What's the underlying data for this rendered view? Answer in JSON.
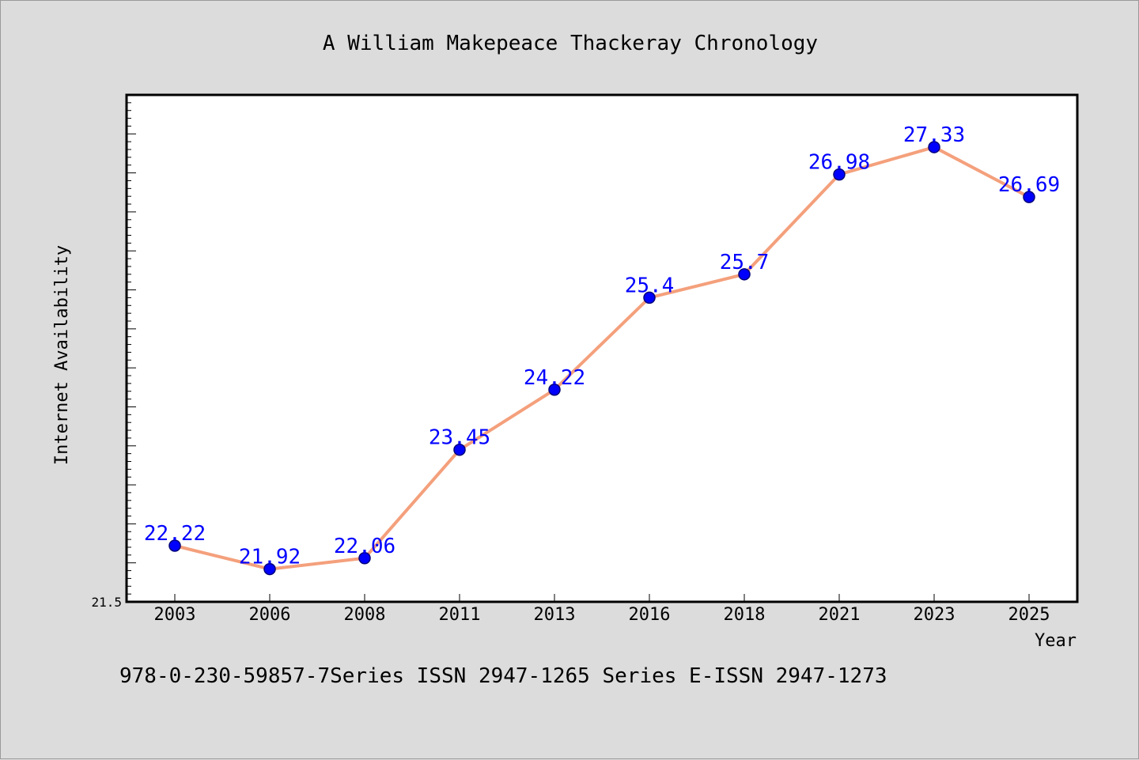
{
  "chart_data": {
    "type": "line",
    "title": "A William Makepeace Thackeray Chronology",
    "xlabel": "Year",
    "ylabel": "Internet Availability",
    "categories": [
      "2003",
      "2006",
      "2008",
      "2011",
      "2013",
      "2016",
      "2018",
      "2021",
      "2023",
      "2025"
    ],
    "series": [
      {
        "values": [
          22.22,
          21.92,
          22.06,
          23.45,
          24.22,
          25.4,
          25.7,
          26.98,
          27.33,
          26.69
        ],
        "labels": [
          "22.22",
          "21.92",
          "22.06",
          "23.45",
          "24.22",
          "25.4",
          "25.7",
          "26.98",
          "27.33",
          "26.69"
        ],
        "line_color": "#f4a07c",
        "marker_color": "#0000ff"
      }
    ],
    "y_tick_labels": [
      "21.5"
    ],
    "ylim": [
      21.5,
      28.0
    ],
    "grid": false,
    "legend": "none"
  },
  "footer": {
    "text": "978-0-230-59857-7Series ISSN 2947-1265 Series E-ISSN 2947-1273"
  },
  "colors": {
    "background": "#dcdcdc",
    "plot_background": "#ffffff",
    "label_color": "#0000ff"
  }
}
